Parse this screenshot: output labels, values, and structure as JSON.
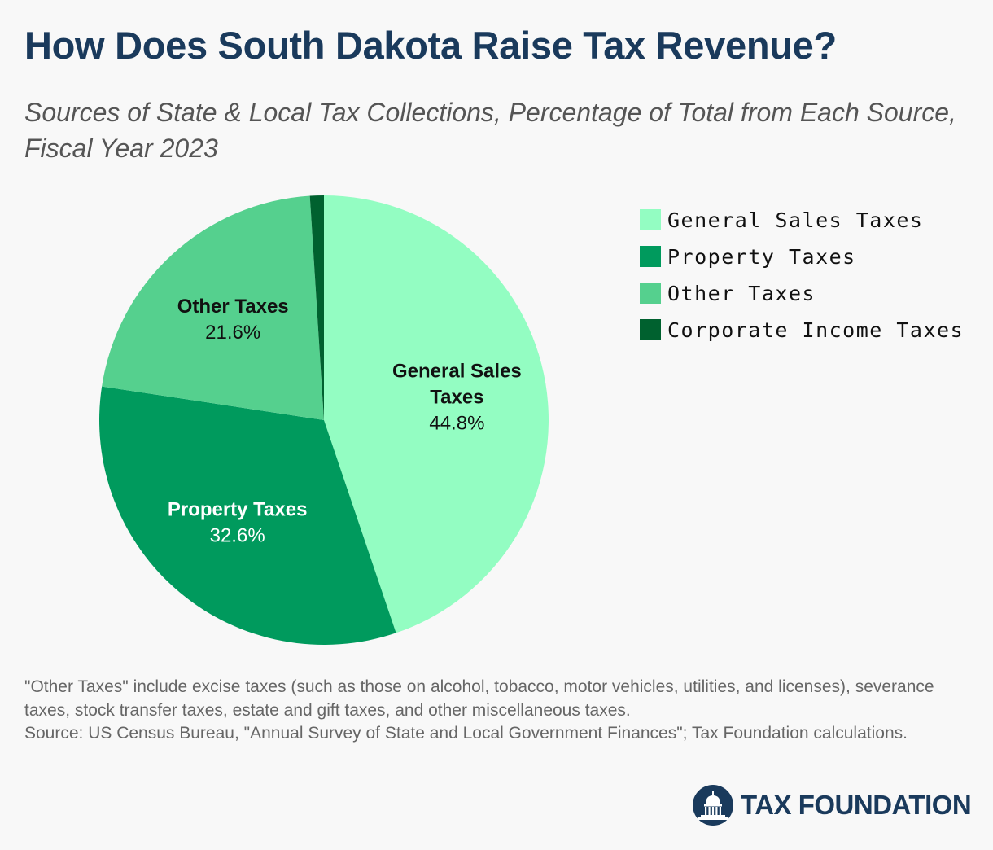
{
  "header": {
    "title": "How Does South Dakota Raise Tax Revenue?",
    "subtitle": "Sources of State & Local Tax Collections, Percentage of Total from Each Source, Fiscal Year 2023"
  },
  "chart_data": {
    "type": "pie",
    "title": "How Does South Dakota Raise Tax Revenue?",
    "subtitle": "Sources of State & Local Tax Collections, Percentage of Total from Each Source, Fiscal Year 2023",
    "legend_position": "right",
    "slices": [
      {
        "label": "General Sales Taxes",
        "value": 44.8,
        "value_label": "44.8%",
        "color": "#93fdc2",
        "label_lines": [
          "General Sales",
          "Taxes"
        ],
        "text_color": "#111111"
      },
      {
        "label": "Property Taxes",
        "value": 32.6,
        "value_label": "32.6%",
        "color": "#009a5d",
        "label_lines": [
          "Property Taxes"
        ],
        "text_color": "#ffffff"
      },
      {
        "label": "Other Taxes",
        "value": 21.6,
        "value_label": "21.6%",
        "color": "#55d08e",
        "label_lines": [
          "Other Taxes"
        ],
        "text_color": "#111111"
      },
      {
        "label": "Corporate Income Taxes",
        "value": 1.0,
        "value_label": "",
        "color": "#00612f",
        "label_lines": [],
        "text_color": "#ffffff"
      }
    ]
  },
  "footer": {
    "note": "\"Other Taxes\" include excise taxes (such as those on alcohol, tobacco, motor vehicles, utilities, and licenses), severance taxes, stock transfer taxes, estate and gift taxes, and other miscellaneous taxes.",
    "source": "Source: US Census Bureau, \"Annual Survey of State and Local Government Finances\"; Tax Foundation calculations.",
    "logo_text": "TAX FOUNDATION",
    "logo_icon": "capitol-dome-icon",
    "brand_color": "#1a3a5c"
  }
}
